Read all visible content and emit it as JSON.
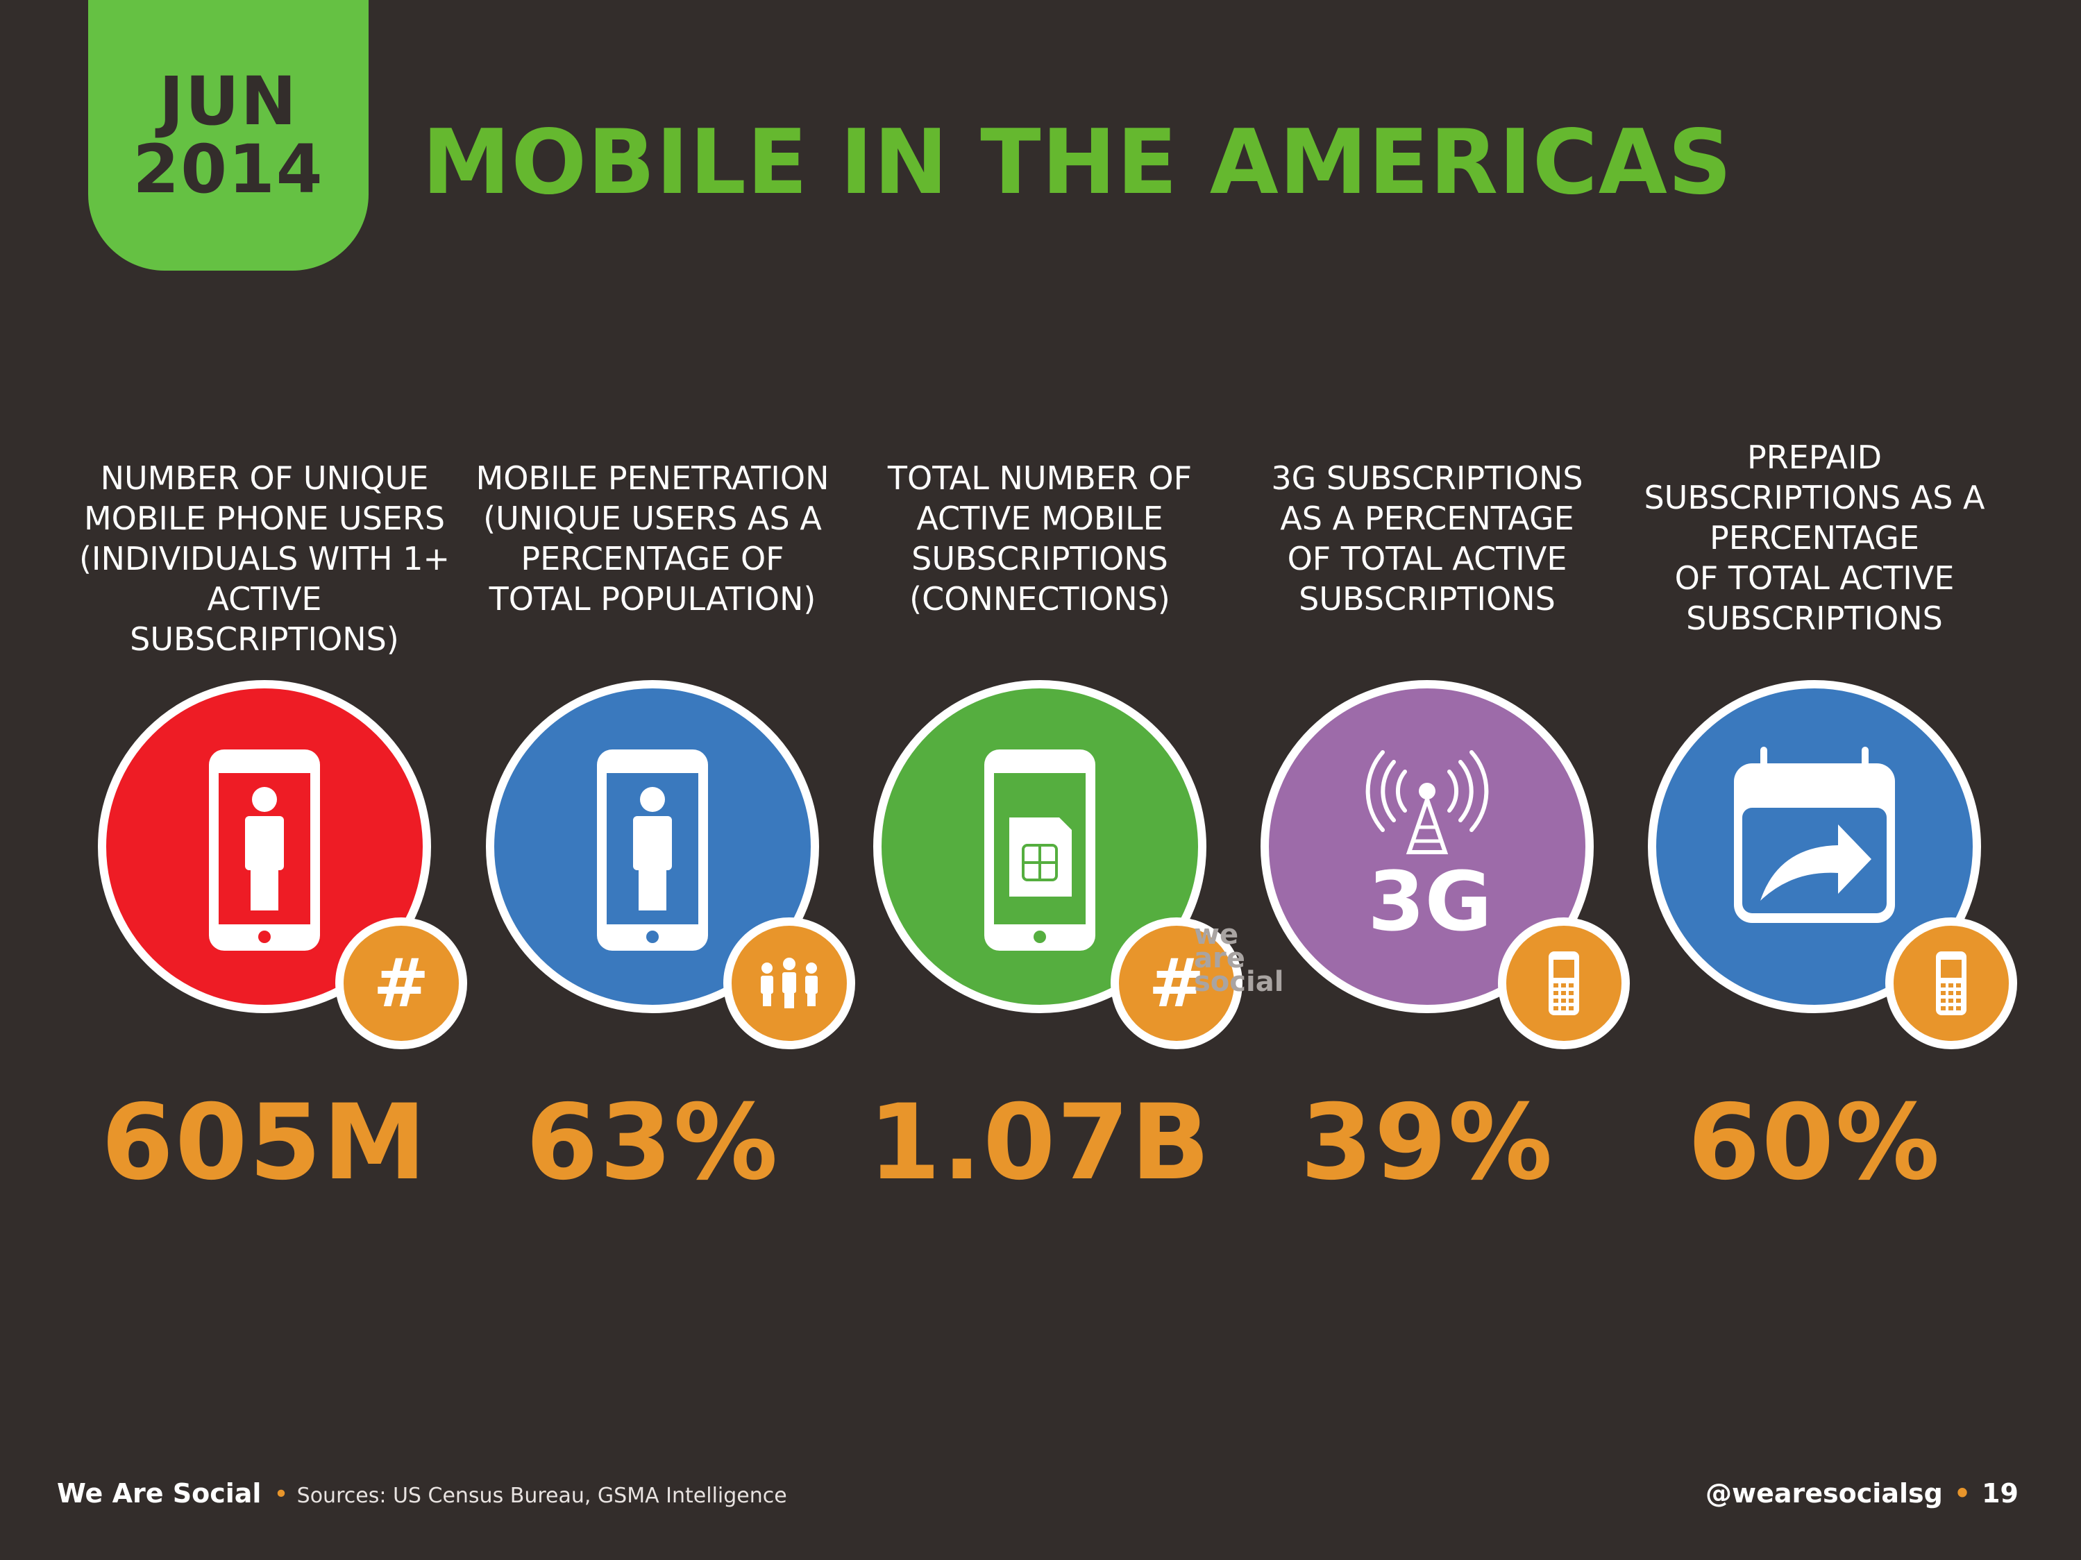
{
  "header": {
    "month": "JUN",
    "year": "2014",
    "title": "MOBILE IN THE AMERICAS"
  },
  "stats": [
    {
      "label": "NUMBER OF UNIQUE\nMOBILE PHONE USERS\n(INDIVIDUALS WITH 1+\nACTIVE SUBSCRIPTIONS)",
      "value": "605M",
      "color": "#ee1c25",
      "icon": "phone-person-icon",
      "badge_icon": "hash-icon",
      "badge_text": "#"
    },
    {
      "label": "MOBILE PENETRATION\n(UNIQUE USERS AS A\nPERCENTAGE OF\nTOTAL POPULATION)",
      "value": "63%",
      "color": "#3a79be",
      "icon": "phone-person-icon",
      "badge_icon": "people-group-icon"
    },
    {
      "label": "TOTAL NUMBER OF\nACTIVE MOBILE\nSUBSCRIPTIONS\n(CONNECTIONS)",
      "value": "1.07B",
      "color": "#55ae3f",
      "icon": "phone-sim-card-icon",
      "badge_icon": "hash-icon",
      "badge_text": "#"
    },
    {
      "label": "3G SUBSCRIPTIONS\nAS A PERCENTAGE\nOF TOTAL ACTIVE\nSUBSCRIPTIONS",
      "value": "39%",
      "color": "#9d6ba9",
      "icon": "3g-tower-icon",
      "icon_text": "3G",
      "badge_icon": "mobile-phone-icon"
    },
    {
      "label": "PREPAID\nSUBSCRIPTIONS AS A\nPERCENTAGE\nOF TOTAL ACTIVE\nSUBSCRIPTIONS",
      "value": "60%",
      "color": "#3a79be",
      "icon": "calendar-arrow-icon",
      "badge_icon": "mobile-phone-icon"
    }
  ],
  "watermark": {
    "line1": "we",
    "line2": "are",
    "line3": "social"
  },
  "footer": {
    "brand": "We Are Social",
    "sources": "Sources: US Census Bureau, GSMA Intelligence",
    "handle": "@wearesocialsg",
    "page": "19"
  }
}
